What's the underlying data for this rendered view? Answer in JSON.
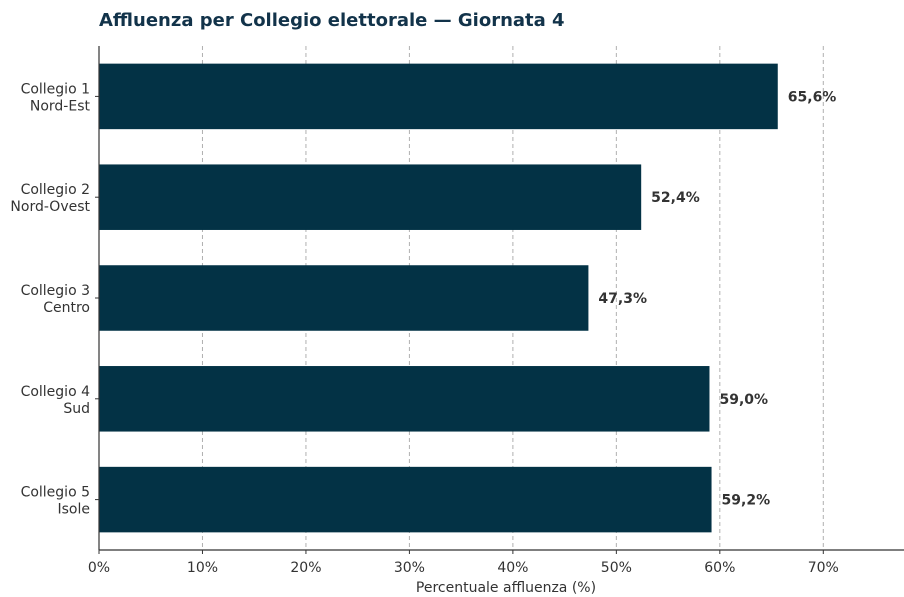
{
  "chart_data": {
    "type": "bar",
    "orientation": "horizontal",
    "title": "Affluenza per Collegio elettorale — Giornata 4",
    "xlabel": "Percentuale affluenza (%)",
    "ylabel": "",
    "categories": [
      [
        "Collegio 1",
        "Nord-Est"
      ],
      [
        "Collegio 2",
        "Nord-Ovest"
      ],
      [
        "Collegio 3",
        "Centro"
      ],
      [
        "Collegio 4",
        "Sud"
      ],
      [
        "Collegio 5",
        "Isole"
      ]
    ],
    "values": [
      65.6,
      52.4,
      47.3,
      59.0,
      59.2
    ],
    "value_labels": [
      "65,6%",
      "52,4%",
      "47,3%",
      "59,0%",
      "59,2%"
    ],
    "xlim": [
      0,
      77.8
    ],
    "xticks": [
      0,
      10,
      20,
      30,
      40,
      50,
      60,
      70
    ],
    "xtick_labels": [
      "0%",
      "10%",
      "20%",
      "30%",
      "40%",
      "50%",
      "60%",
      "70%"
    ],
    "grid": "vertical dashed",
    "colors": {
      "bar": "#033245",
      "title": "#12334a",
      "grid": "#b0b0b0",
      "axis": "#333333",
      "text": "#333333"
    }
  }
}
